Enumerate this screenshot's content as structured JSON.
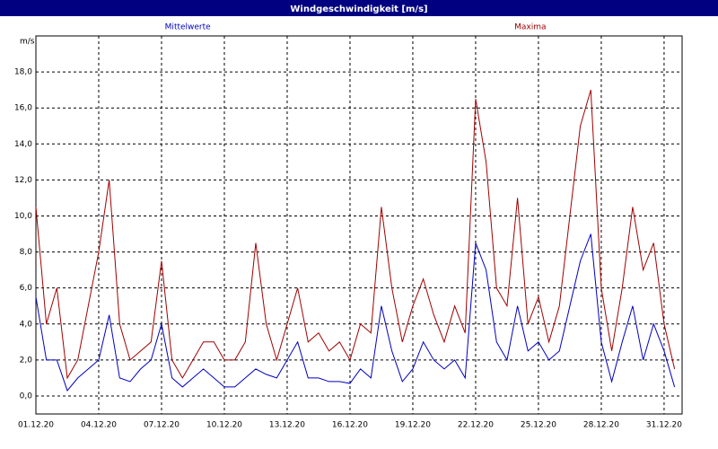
{
  "chart_data": {
    "type": "line",
    "title": "Windgeschwindigkeit [m/s]",
    "y_label": "m/s",
    "legend": "top",
    "grid": true,
    "x": [
      0,
      0.5,
      1,
      1.5,
      2,
      2.5,
      3,
      3.5,
      4,
      4.5,
      5,
      5.5,
      6,
      6.5,
      7,
      7.5,
      8,
      8.5,
      9,
      9.5,
      10,
      10.5,
      11,
      11.5,
      12,
      12.5,
      13,
      13.5,
      14,
      14.5,
      15,
      15.5,
      16,
      16.5,
      17,
      17.5,
      18,
      18.5,
      19,
      19.5,
      20,
      20.5,
      21,
      21.5,
      22,
      22.5,
      23,
      23.5,
      24,
      24.5,
      25,
      25.5,
      26,
      26.5,
      27,
      27.5,
      28,
      28.5,
      29,
      29.5,
      30,
      30.5
    ],
    "xlim": [
      0,
      30.86
    ],
    "xticks": [
      {
        "value": 0,
        "label": "01.12.20"
      },
      {
        "value": 3,
        "label": "04.12.20"
      },
      {
        "value": 6,
        "label": "07.12.20"
      },
      {
        "value": 9,
        "label": "10.12.20"
      },
      {
        "value": 12,
        "label": "13.12.20"
      },
      {
        "value": 15,
        "label": "16.12.20"
      },
      {
        "value": 18,
        "label": "19.12.20"
      },
      {
        "value": 21,
        "label": "22.12.20"
      },
      {
        "value": 24,
        "label": "25.12.20"
      },
      {
        "value": 27,
        "label": "28.12.20"
      },
      {
        "value": 30,
        "label": "31.12.20"
      }
    ],
    "ylim": [
      -1,
      20
    ],
    "yticks": [
      {
        "value": 0,
        "label": "0,0"
      },
      {
        "value": 2,
        "label": "2,0"
      },
      {
        "value": 4,
        "label": "4,0"
      },
      {
        "value": 6,
        "label": "6,0"
      },
      {
        "value": 8,
        "label": "8,0"
      },
      {
        "value": 10,
        "label": "10,0"
      },
      {
        "value": 12,
        "label": "12,0"
      },
      {
        "value": 14,
        "label": "14,0"
      },
      {
        "value": 16,
        "label": "16,0"
      },
      {
        "value": 18,
        "label": "18,0"
      }
    ],
    "series": [
      {
        "name": "Mittelwerte",
        "color": "#0000c0",
        "values": [
          5.5,
          2,
          2,
          0.3,
          1,
          1.5,
          2,
          4.5,
          1,
          0.8,
          1.5,
          2,
          4,
          1,
          0.5,
          1,
          1.5,
          1,
          0.5,
          0.5,
          1,
          1.5,
          1.2,
          1,
          2,
          3,
          1,
          1,
          0.8,
          0.8,
          0.7,
          1.5,
          1,
          5,
          2.5,
          0.8,
          1.5,
          3,
          2,
          1.5,
          2,
          1,
          8.5,
          7,
          3,
          2,
          5,
          2.5,
          3,
          2,
          2.5,
          5,
          7.5,
          9,
          3,
          0.8,
          3,
          5,
          2,
          4,
          2.5,
          0.5
        ]
      },
      {
        "name": "Maxima",
        "color": "#a00000",
        "values": [
          10.5,
          4,
          6,
          1,
          2,
          5,
          8,
          12,
          4,
          2,
          2.5,
          3,
          7.5,
          2,
          1,
          2,
          3,
          3,
          2,
          2,
          3,
          8.5,
          4,
          2,
          4,
          6,
          3,
          3.5,
          2.5,
          3,
          2,
          4,
          3.5,
          10.5,
          6,
          3,
          5,
          6.5,
          4.5,
          3,
          5,
          3.5,
          16.5,
          13,
          6,
          5,
          11,
          4,
          5.5,
          3,
          5,
          10,
          15,
          17,
          6,
          2.5,
          6,
          10.5,
          7,
          8.5,
          4,
          1.5
        ]
      }
    ]
  }
}
